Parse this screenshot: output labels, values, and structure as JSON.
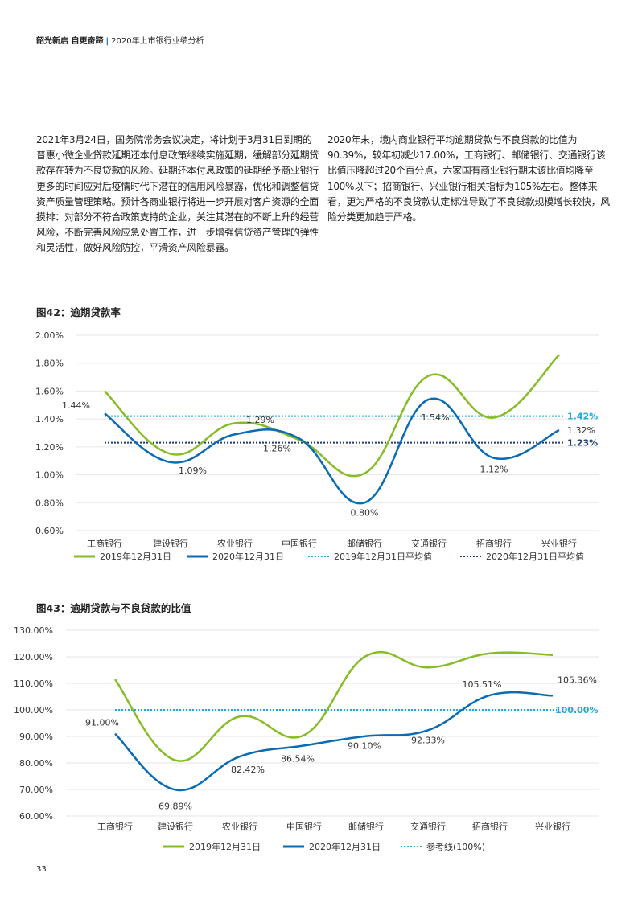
{
  "header": {
    "bold": "韶光新启 自更奋蹄",
    "separator": "|",
    "subtitle": "2020年上市银行业绩分析"
  },
  "paragraphs": [
    "2021年3月24日，国务院常务会议决定，将计划于3月31日到期的普惠小微企业贷款延期还本付息政策继续实施延期，缓解部分延期贷款存在转为不良贷款的风险。延期还本付息政策的延期给予商业银行更多的时间应对后疫情时代下潜在的信用风险暴露，优化和调整信贷资产质量管理策略。预计各商业银行将进一步开展对客户资源的全面摸排：对部分不符合政策支持的企业，关注其潜在的不断上升的经营风险，不断完善风险应急处置工作，进一步增强信贷资产管理的弹性和灵活性，做好风险防控，平滑资产风险暴露。",
    "2020年末，境内商业银行平均逾期贷款与不良贷款的比值为90.39%，较年初减少17.00%，工商银行、邮储银行、交通银行该比值压降超过20个百分点，六家国有商业银行期末该比值均降至100%以下；招商银行、兴业银行相关指标为105%左右。整体来看，更为严格的不良贷款认定标准导致了不良贷款规模增长较快，风险分类更加趋于严格。"
  ],
  "page_number": "33",
  "colors": {
    "green": "#86bc25",
    "blue": "#0a6bb5",
    "light_blue": "#1fa8e0",
    "navy": "#1f3a7a",
    "grid": "#e6e6e6"
  },
  "chart_data": [
    {
      "type": "line",
      "title": "图42：逾期贷款率",
      "categories": [
        "工商银行",
        "建设银行",
        "农业银行",
        "中国银行",
        "邮储银行",
        "交通银行",
        "招商银行",
        "兴业银行"
      ],
      "ylim": [
        0.6,
        2.0
      ],
      "yticks": [
        "0.60%",
        "0.80%",
        "1.00%",
        "1.20%",
        "1.40%",
        "1.60%",
        "1.80%",
        "2.00%"
      ],
      "grid": true,
      "legend_placement": "bottom",
      "series": [
        {
          "name": "2019年12月31日",
          "values": [
            1.6,
            1.15,
            1.37,
            1.25,
            1.01,
            1.71,
            1.41,
            1.86
          ],
          "style": "solid",
          "color": "#86bc25"
        },
        {
          "name": "2020年12月31日",
          "values": [
            1.44,
            1.09,
            1.29,
            1.26,
            0.8,
            1.54,
            1.12,
            1.32
          ],
          "labels": [
            "1.44%",
            "1.09%",
            "1.29%",
            "1.26%",
            "0.80%",
            "1.54%",
            "1.12%",
            "1.32%"
          ],
          "style": "solid",
          "color": "#0a6bb5"
        }
      ],
      "reference_lines": [
        {
          "name": "2019年12月31日平均值",
          "value": 1.42,
          "label": "1.42%",
          "color": "#1fa8e0"
        },
        {
          "name": "2020年12月31日平均值",
          "value": 1.23,
          "label": "1.23%",
          "color": "#1f3a7a"
        }
      ]
    },
    {
      "type": "line",
      "title": "图43：逾期贷款与不良贷款的比值",
      "categories": [
        "工商银行",
        "建设银行",
        "农业银行",
        "中国银行",
        "邮储银行",
        "交通银行",
        "招商银行",
        "兴业银行"
      ],
      "ylim": [
        60,
        130
      ],
      "yticks": [
        "60.00%",
        "70.00%",
        "80.00%",
        "90.00%",
        "100.00%",
        "110.00%",
        "120.00%",
        "130.00%"
      ],
      "grid": true,
      "legend_placement": "bottom",
      "series": [
        {
          "name": "2019年12月31日",
          "values": [
            111.5,
            81.0,
            97.5,
            90.5,
            120.3,
            116.0,
            121.3,
            120.7
          ],
          "style": "solid",
          "color": "#86bc25"
        },
        {
          "name": "2020年12月31日",
          "values": [
            91.0,
            69.89,
            82.42,
            86.54,
            90.1,
            92.33,
            105.51,
            105.36
          ],
          "labels": [
            "91.00%",
            "69.89%",
            "82.42%",
            "86.54%",
            "90.10%",
            "92.33%",
            "105.51%",
            "105.36%"
          ],
          "style": "solid",
          "color": "#0a6bb5"
        }
      ],
      "reference_lines": [
        {
          "name": "参考线(100%)",
          "value": 100,
          "label": "100.00%",
          "color": "#1fa8e0"
        }
      ]
    }
  ]
}
